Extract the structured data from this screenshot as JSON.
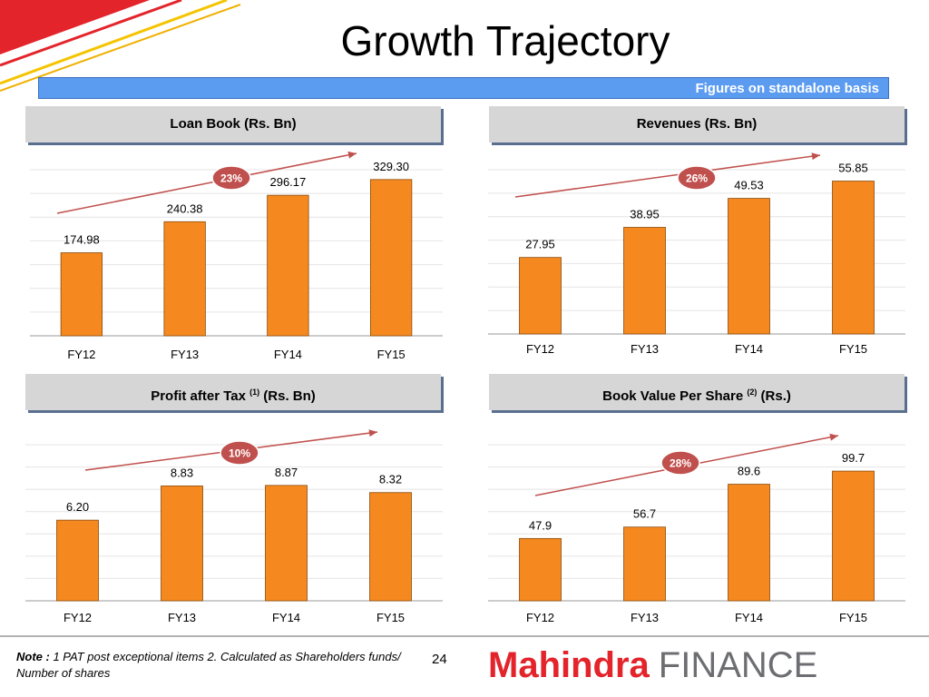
{
  "title": "Growth Trajectory",
  "banner": "Figures on standalone basis",
  "headers": {
    "loan": "Loan Book (Rs. Bn)",
    "revenue": "Revenues (Rs. Bn)",
    "pat_pre": "Profit after Tax",
    "pat_sup": "(1)",
    "pat_post": "(Rs. Bn)",
    "bvps_pre": "Book Value Per Share",
    "bvps_sup": "(2)",
    "bvps_post": "(Rs.)"
  },
  "colors": {
    "bar": "#f5891f",
    "bar_outline": "#8a4a0a",
    "arrow": "#c0504d",
    "badge": "#c0504d",
    "banner": "#5b9bf0",
    "brand_red": "#e3242b",
    "brand_grey": "#6d6e71"
  },
  "chart_data": [
    {
      "type": "bar",
      "title": "Loan Book (Rs. Bn)",
      "categories": [
        "FY12",
        "FY13",
        "FY14",
        "FY15"
      ],
      "values": [
        174.98,
        240.38,
        296.17,
        329.3
      ],
      "value_labels": [
        "174.98",
        "240.38",
        "296.17",
        "329.30"
      ],
      "cagr_label": "23%",
      "ylim": [
        0,
        350
      ],
      "grid": true
    },
    {
      "type": "bar",
      "title": "Revenues (Rs. Bn)",
      "categories": [
        "FY12",
        "FY13",
        "FY14",
        "FY15"
      ],
      "values": [
        27.95,
        38.95,
        49.53,
        55.85
      ],
      "value_labels": [
        "27.95",
        "38.95",
        "49.53",
        "55.85"
      ],
      "cagr_label": "26%",
      "ylim": [
        0,
        60
      ],
      "grid": true
    },
    {
      "type": "bar",
      "title": "Profit after Tax (1) (Rs. Bn)",
      "categories": [
        "FY12",
        "FY13",
        "FY14",
        "FY15"
      ],
      "values": [
        6.2,
        8.83,
        8.87,
        8.32
      ],
      "value_labels": [
        "6.20",
        "8.83",
        "8.87",
        "8.32"
      ],
      "cagr_label": "10%",
      "ylim": [
        0,
        12
      ],
      "grid": true
    },
    {
      "type": "bar",
      "title": "Book Value Per Share (2) (Rs.)",
      "categories": [
        "FY12",
        "FY13",
        "FY14",
        "FY15"
      ],
      "values": [
        47.9,
        56.7,
        89.6,
        99.7
      ],
      "value_labels": [
        "47.9",
        "56.7",
        "89.6",
        "99.7"
      ],
      "cagr_label": "28%",
      "ylim": [
        0,
        120
      ],
      "grid": true
    }
  ],
  "footer": {
    "note_label": "Note :",
    "note_text": "1 PAT post exceptional items 2. Calculated as Shareholders funds/ Number of shares",
    "page_number": "24",
    "logo_brand": "Mahindra",
    "logo_sub": "FINANCE"
  }
}
